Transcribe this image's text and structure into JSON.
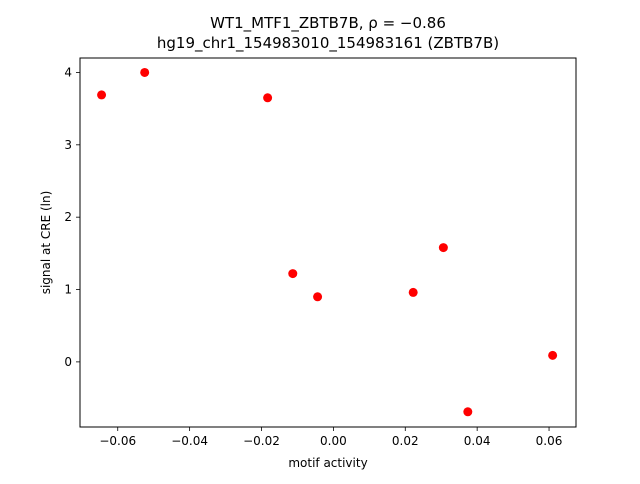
{
  "chart_data": {
    "type": "scatter",
    "title": "WT1_MTF1_ZBTB7B, ρ = −0.86",
    "subtitle": "hg19_chr1_154983010_154983161 (ZBTB7B)",
    "xlabel": "motif activity",
    "ylabel": "signal at CRE (ln)",
    "xlim": [
      -0.0705,
      0.0675
    ],
    "ylim": [
      -0.9,
      4.2
    ],
    "xticks": [
      -0.06,
      -0.04,
      -0.02,
      0.0,
      0.02,
      0.04,
      0.06
    ],
    "xtick_labels": [
      "−0.06",
      "−0.04",
      "−0.02",
      "0.00",
      "0.02",
      "0.04",
      "0.06"
    ],
    "yticks": [
      0,
      1,
      2,
      3,
      4
    ],
    "ytick_labels": [
      "0",
      "1",
      "2",
      "3",
      "4"
    ],
    "grid": false,
    "legend": "none",
    "marker_color": "#ff0000",
    "series": [
      {
        "points": [
          {
            "x": -0.0645,
            "y": 3.69
          },
          {
            "x": -0.0525,
            "y": 4.0
          },
          {
            "x": -0.0183,
            "y": 3.65
          },
          {
            "x": -0.0113,
            "y": 1.22
          },
          {
            "x": -0.0044,
            "y": 0.9
          },
          {
            "x": 0.0222,
            "y": 0.96
          },
          {
            "x": 0.0306,
            "y": 1.58
          },
          {
            "x": 0.0374,
            "y": -0.69
          },
          {
            "x": 0.061,
            "y": 0.09
          }
        ]
      }
    ]
  }
}
